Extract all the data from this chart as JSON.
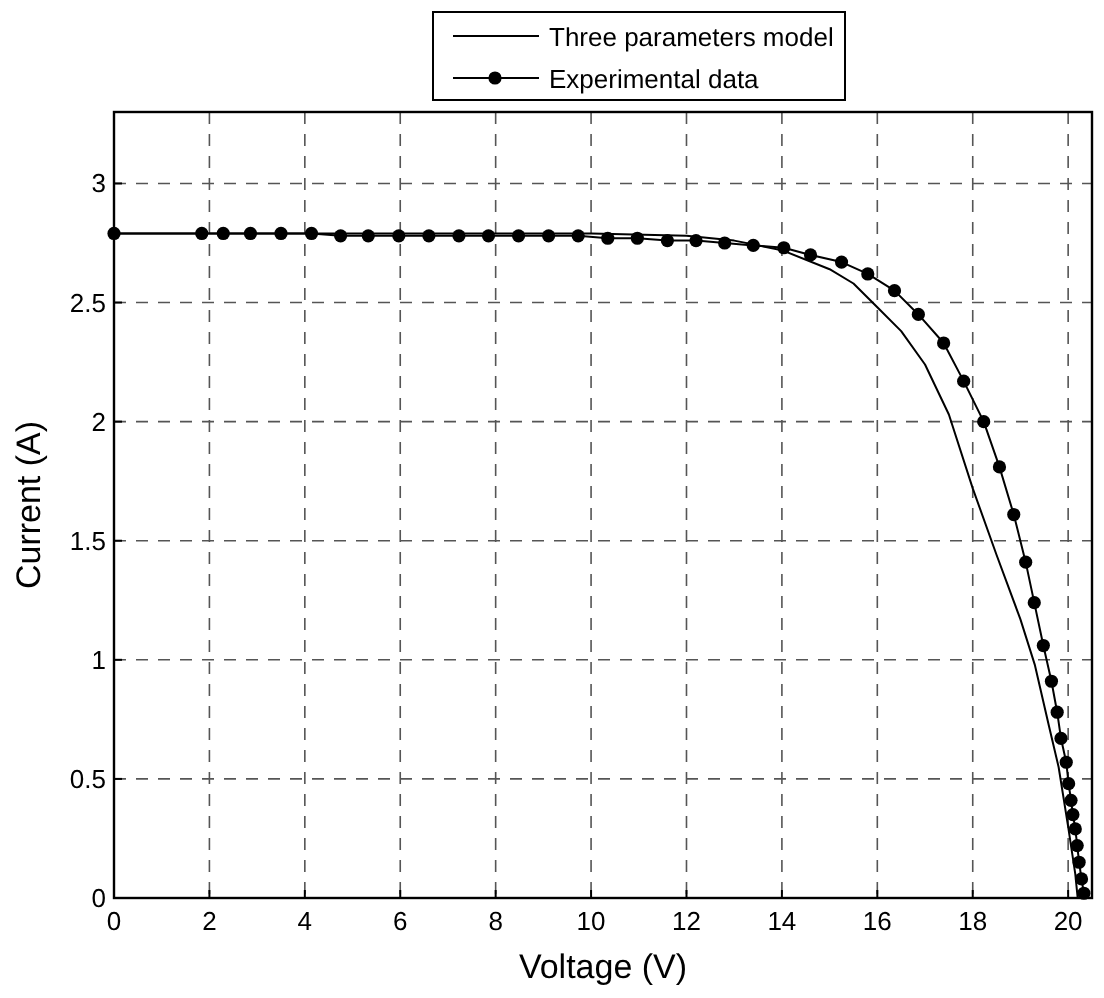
{
  "chart_data": {
    "type": "line",
    "xlabel": "Voltage (V)",
    "ylabel": "Current (A)",
    "xlim": [
      0,
      20.5
    ],
    "ylim": [
      0,
      3.3
    ],
    "xticks": [
      0,
      2,
      4,
      6,
      8,
      10,
      12,
      14,
      16,
      18,
      20
    ],
    "yticks": [
      0,
      0.5,
      1,
      1.5,
      2,
      2.5,
      3
    ],
    "grid": true,
    "legend": "top",
    "series": [
      {
        "name": "Three parameters model",
        "color": "#000000",
        "marker": "none",
        "x": [
          0,
          10,
          12,
          13,
          14,
          15,
          15.5,
          16,
          16.5,
          17,
          17.5,
          18,
          18.5,
          19,
          19.3,
          19.6,
          19.8,
          20,
          20.15,
          20.2
        ],
        "values": [
          2.79,
          2.79,
          2.78,
          2.76,
          2.72,
          2.64,
          2.58,
          2.48,
          2.38,
          2.24,
          2.03,
          1.72,
          1.44,
          1.17,
          0.98,
          0.72,
          0.55,
          0.3,
          0.1,
          0
        ]
      },
      {
        "name": "Experimental data",
        "color": "#000000",
        "marker": "circle",
        "x": [
          0,
          1.84,
          2.29,
          2.86,
          3.5,
          4.14,
          4.75,
          5.33,
          5.97,
          6.6,
          7.23,
          7.85,
          8.48,
          9.11,
          9.73,
          10.35,
          10.97,
          11.6,
          12.2,
          12.8,
          13.4,
          14.04,
          14.6,
          15.25,
          15.8,
          16.36,
          16.86,
          17.39,
          17.81,
          18.23,
          18.56,
          18.86,
          19.11,
          19.29,
          19.48,
          19.65,
          19.77,
          19.85,
          19.96,
          20.01,
          20.06,
          20.1,
          20.15,
          20.19,
          20.23,
          20.28,
          20.33
        ],
        "values": [
          2.79,
          2.79,
          2.79,
          2.79,
          2.79,
          2.79,
          2.78,
          2.78,
          2.78,
          2.78,
          2.78,
          2.78,
          2.78,
          2.78,
          2.78,
          2.77,
          2.77,
          2.76,
          2.76,
          2.75,
          2.74,
          2.73,
          2.7,
          2.67,
          2.62,
          2.55,
          2.45,
          2.33,
          2.17,
          2,
          1.81,
          1.61,
          1.41,
          1.24,
          1.06,
          0.91,
          0.78,
          0.67,
          0.57,
          0.48,
          0.41,
          0.35,
          0.29,
          0.22,
          0.15,
          0.08,
          0.02
        ]
      }
    ]
  }
}
